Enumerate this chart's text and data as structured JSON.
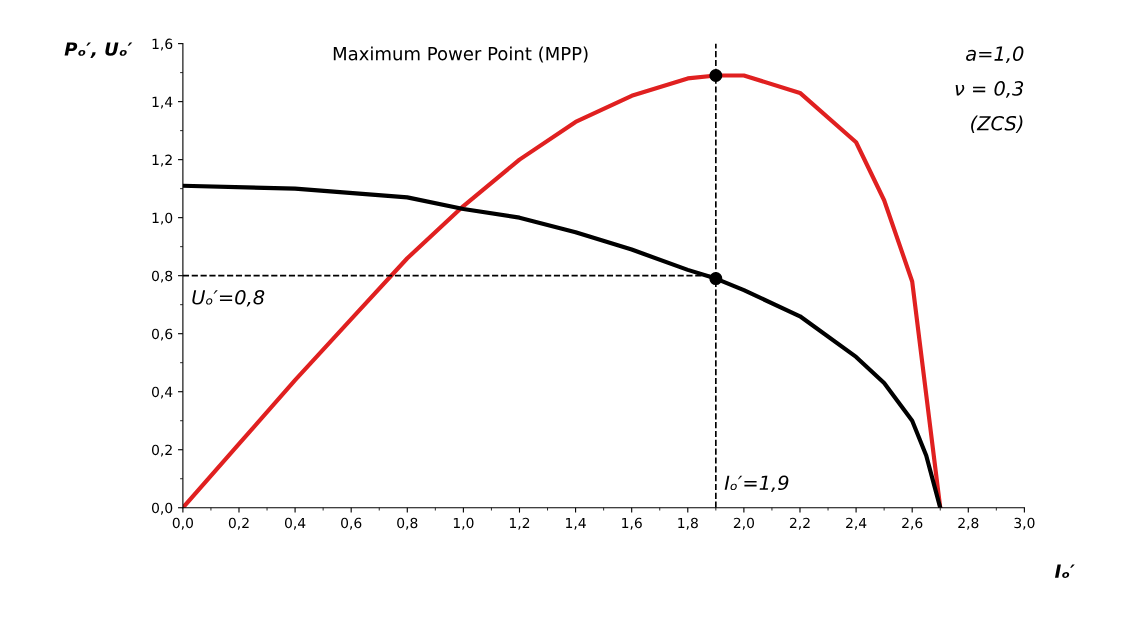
{
  "chart_data": {
    "type": "line",
    "xlabel": "Iₒ′",
    "ylabel": "Pₒ′, Uₒ′",
    "series": [
      {
        "color": "#e02020",
        "x": [
          0,
          0.2,
          0.4,
          0.6,
          0.8,
          1.0,
          1.2,
          1.4,
          1.6,
          1.8,
          1.9,
          2.0,
          2.2,
          2.4,
          2.5,
          2.6,
          2.7
        ],
        "values": [
          0,
          0.22,
          0.44,
          0.65,
          0.86,
          1.04,
          1.2,
          1.33,
          1.42,
          1.48,
          1.49,
          1.49,
          1.43,
          1.26,
          1.06,
          0.78,
          0.0
        ]
      },
      {
        "color": "#000000",
        "x": [
          0,
          0.4,
          0.8,
          1.0,
          1.2,
          1.4,
          1.6,
          1.8,
          1.9,
          2.0,
          2.2,
          2.4,
          2.5,
          2.6,
          2.65,
          2.7
        ],
        "values": [
          1.11,
          1.1,
          1.07,
          1.03,
          1.0,
          0.95,
          0.89,
          0.82,
          0.79,
          0.75,
          0.66,
          0.52,
          0.43,
          0.3,
          0.18,
          0.0
        ]
      },
      {
        "type": "line",
        "color": "#000000",
        "line_style": "dashed",
        "x": [
          0,
          1.9
        ],
        "values": [
          0.8,
          0.8
        ]
      },
      {
        "type": "scatter",
        "color": "#000000",
        "marker": "circle",
        "x": [
          1.9,
          1.9
        ],
        "values": [
          1.49,
          0.79
        ]
      }
    ],
    "ref_lines": [
      {
        "axis": "x",
        "value": 1.9,
        "color": "#000000",
        "line_style": "dashed"
      }
    ],
    "annotations": [
      "Maximum Power Point (MPP)",
      "a=1,0",
      "ν = 0,3",
      "(ZCS)",
      {
        "text": "Uₒ′=0,8",
        "x": 0.0,
        "y": 0.8
      },
      {
        "text": "Iₒ′=1,9",
        "x": 1.9,
        "y": 0.0
      }
    ],
    "xlim": [
      0,
      3.0
    ],
    "ylim": [
      0,
      1.6
    ],
    "xticks": [
      {
        "value": 0,
        "label": "0,0"
      },
      {
        "value": 0.2,
        "label": "0,2"
      },
      {
        "value": 0.4,
        "label": "0,4"
      },
      {
        "value": 0.6,
        "label": "0,6"
      },
      {
        "value": 0.8,
        "label": "0,8"
      },
      {
        "value": 1.0,
        "label": "1,0"
      },
      {
        "value": 1.2,
        "label": "1,2"
      },
      {
        "value": 1.4,
        "label": "1,4"
      },
      {
        "value": 1.6,
        "label": "1,6"
      },
      {
        "value": 1.8,
        "label": "1,8"
      },
      {
        "value": 2.0,
        "label": "2,0"
      },
      {
        "value": 2.2,
        "label": "2,2"
      },
      {
        "value": 2.4,
        "label": "2,4"
      },
      {
        "value": 2.6,
        "label": "2,6"
      },
      {
        "value": 2.8,
        "label": "2,8"
      },
      {
        "value": 3.0,
        "label": "3,0"
      }
    ],
    "yticks": [
      {
        "value": 0,
        "label": "0,0"
      },
      {
        "value": 0.2,
        "label": "0,2"
      },
      {
        "value": 0.4,
        "label": "0,4"
      },
      {
        "value": 0.6,
        "label": "0,6"
      },
      {
        "value": 0.8,
        "label": "0,8"
      },
      {
        "value": 1.0,
        "label": "1,0"
      },
      {
        "value": 1.2,
        "label": "1,2"
      },
      {
        "value": 1.4,
        "label": "1,4"
      },
      {
        "value": 1.6,
        "label": "1,6"
      }
    ],
    "grid": false,
    "legend": false
  }
}
